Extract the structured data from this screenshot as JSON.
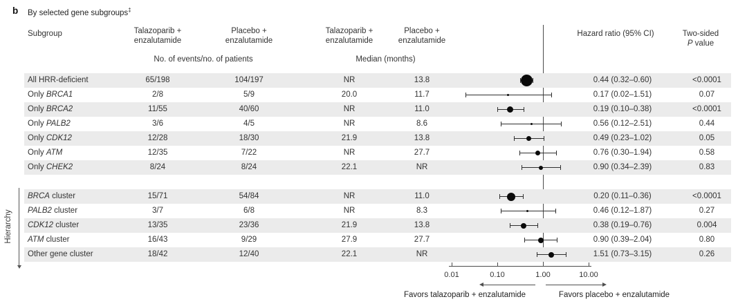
{
  "panel": {
    "letter": "b",
    "title": "By selected gene subgroups",
    "footnote_symbol": "‡"
  },
  "header": {
    "subgroup": "Subgroup",
    "arm_tala_line1": "Talazoparib +",
    "arm_tala_line2": "enzalutamide",
    "arm_placebo_line1": "Placebo +",
    "arm_placebo_line2": "enzalutamide",
    "events_subheader": "No. of events/no. of patients",
    "median_subheader": "Median (months)",
    "hazard_ratio": "Hazard ratio (95% CI)",
    "pvalue_line1": "Two-sided",
    "pvalue_italic": "P",
    "pvalue_rest": " value"
  },
  "chart_data": {
    "type": "forest",
    "x_axis": {
      "scale": "log",
      "tick_values": [
        0.01,
        0.1,
        1,
        10
      ],
      "tick_labels": [
        "0.01",
        "0.10",
        "1.00",
        "10.00"
      ],
      "reference_line": 1.0
    },
    "hierarchy_label": "Hierarchy",
    "favors_left": "Favors talazoparib + enzalutamide",
    "favors_right": "Favors placebo + enzalutamide",
    "rows": [
      {
        "label": {
          "pre": "All HRR-deficient",
          "italic": "",
          "post": ""
        },
        "events": [
          "65/198",
          "104/197"
        ],
        "medians": [
          "NR",
          "13.8"
        ],
        "hr": 0.44,
        "ci": [
          0.32,
          0.6
        ],
        "hr_text": "0.44 (0.32–0.60)",
        "p": "<0.0001",
        "marker": 17,
        "shaded": true,
        "group": "single"
      },
      {
        "label": {
          "pre": "Only ",
          "italic": "BRCA1",
          "post": ""
        },
        "events": [
          "2/8",
          "5/9"
        ],
        "medians": [
          "20.0",
          "11.7"
        ],
        "hr": 0.17,
        "ci": [
          0.02,
          1.51
        ],
        "hr_text": "0.17 (0.02–1.51)",
        "p": "0.07",
        "marker": 3,
        "shaded": false,
        "group": "single"
      },
      {
        "label": {
          "pre": "Only ",
          "italic": "BRCA2",
          "post": ""
        },
        "events": [
          "11/55",
          "40/60"
        ],
        "medians": [
          "NR",
          "11.0"
        ],
        "hr": 0.19,
        "ci": [
          0.1,
          0.38
        ],
        "hr_text": "0.19 (0.10–0.38)",
        "p": "<0.0001",
        "marker": 9,
        "shaded": true,
        "group": "single"
      },
      {
        "label": {
          "pre": "Only ",
          "italic": "PALB2",
          "post": ""
        },
        "events": [
          "3/6",
          "4/5"
        ],
        "medians": [
          "NR",
          "8.6"
        ],
        "hr": 0.56,
        "ci": [
          0.12,
          2.51
        ],
        "hr_text": "0.56 (0.12–2.51)",
        "p": "0.44",
        "marker": 3,
        "shaded": false,
        "group": "single"
      },
      {
        "label": {
          "pre": "Only ",
          "italic": "CDK12",
          "post": ""
        },
        "events": [
          "12/28",
          "18/30"
        ],
        "medians": [
          "21.9",
          "13.8"
        ],
        "hr": 0.49,
        "ci": [
          0.23,
          1.02
        ],
        "hr_text": "0.49 (0.23–1.02)",
        "p": "0.05",
        "marker": 7,
        "shaded": true,
        "group": "single"
      },
      {
        "label": {
          "pre": "Only ",
          "italic": "ATM",
          "post": ""
        },
        "events": [
          "12/35",
          "7/22"
        ],
        "medians": [
          "NR",
          "27.7"
        ],
        "hr": 0.76,
        "ci": [
          0.3,
          1.94
        ],
        "hr_text": "0.76 (0.30–1.94)",
        "p": "0.58",
        "marker": 7,
        "shaded": false,
        "group": "single"
      },
      {
        "label": {
          "pre": "Only ",
          "italic": "CHEK2",
          "post": ""
        },
        "events": [
          "8/24",
          "8/24"
        ],
        "medians": [
          "22.1",
          "NR"
        ],
        "hr": 0.9,
        "ci": [
          0.34,
          2.39
        ],
        "hr_text": "0.90 (0.34–2.39)",
        "p": "0.83",
        "marker": 6,
        "shaded": true,
        "group": "single"
      },
      {
        "label": {
          "pre": "",
          "italic": "BRCA",
          "post": " cluster"
        },
        "events": [
          "15/71",
          "54/84"
        ],
        "medians": [
          "NR",
          "11.0"
        ],
        "hr": 0.2,
        "ci": [
          0.11,
          0.36
        ],
        "hr_text": "0.20 (0.11–0.36)",
        "p": "<0.0001",
        "marker": 12,
        "shaded": true,
        "group": "cluster"
      },
      {
        "label": {
          "pre": "",
          "italic": "PALB2",
          "post": " cluster"
        },
        "events": [
          "3/7",
          "6/8"
        ],
        "medians": [
          "NR",
          "8.3"
        ],
        "hr": 0.46,
        "ci": [
          0.12,
          1.87
        ],
        "hr_text": "0.46 (0.12–1.87)",
        "p": "0.27",
        "marker": 3,
        "shaded": false,
        "group": "cluster"
      },
      {
        "label": {
          "pre": "",
          "italic": "CDK12",
          "post": " cluster"
        },
        "events": [
          "13/35",
          "23/36"
        ],
        "medians": [
          "21.9",
          "13.8"
        ],
        "hr": 0.38,
        "ci": [
          0.19,
          0.76
        ],
        "hr_text": "0.38 (0.19–0.76)",
        "p": "0.004",
        "marker": 8,
        "shaded": true,
        "group": "cluster"
      },
      {
        "label": {
          "pre": "",
          "italic": "ATM",
          "post": " cluster"
        },
        "events": [
          "16/43",
          "9/29"
        ],
        "medians": [
          "27.9",
          "27.7"
        ],
        "hr": 0.9,
        "ci": [
          0.39,
          2.04
        ],
        "hr_text": "0.90 (0.39–2.04)",
        "p": "0.80",
        "marker": 8,
        "shaded": false,
        "group": "cluster"
      },
      {
        "label": {
          "pre": "Other gene cluster",
          "italic": "",
          "post": ""
        },
        "events": [
          "18/42",
          "12/40"
        ],
        "medians": [
          "22.1",
          "NR"
        ],
        "hr": 1.51,
        "ci": [
          0.73,
          3.15
        ],
        "hr_text": "1.51 (0.73–3.15)",
        "p": "0.26",
        "marker": 8,
        "shaded": true,
        "group": "cluster"
      }
    ]
  },
  "colors": {
    "stripe": "#ebebeb",
    "text": "#333333",
    "line": "#4a4a4a",
    "marker": "#0a0a0a"
  }
}
